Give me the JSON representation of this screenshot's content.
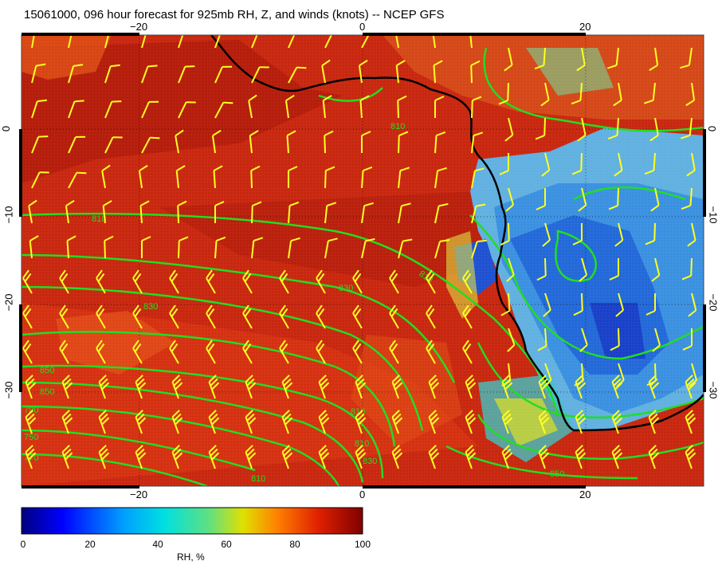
{
  "title": "15061000, 096 hour forecast for 925mb RH, Z, and winds (knots) -- NCEP GFS",
  "axes": {
    "lon_ticks": [
      "−20",
      "0",
      "20"
    ],
    "lat_ticks": [
      "0",
      "−10",
      "−20",
      "−30"
    ]
  },
  "contour_labels": [
    "810",
    "810",
    "810",
    "830",
    "830",
    "850",
    "790",
    "810",
    "810",
    "750",
    "770",
    "830",
    "810",
    "850",
    "850"
  ],
  "colorbar": {
    "label": "RH, %",
    "ticks": [
      "0",
      "20",
      "40",
      "60",
      "80",
      "100"
    ],
    "range": [
      0,
      100
    ]
  },
  "colors": {
    "land_dry": "#2060d0",
    "ocean_moist": "#cc2a10",
    "contour": "#22dd22",
    "barb": "#ffff22",
    "coast": "#000000"
  }
}
